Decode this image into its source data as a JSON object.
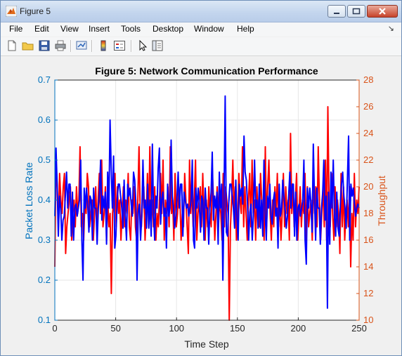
{
  "window": {
    "title": "Figure 5",
    "controls": {
      "minimize": "minimize",
      "maximize": "maximize",
      "close": "close"
    }
  },
  "menu": {
    "items": [
      "File",
      "Edit",
      "View",
      "Insert",
      "Tools",
      "Desktop",
      "Window",
      "Help"
    ],
    "dock_arrow": "↘"
  },
  "toolbar": {
    "icons": [
      "new-figure-icon",
      "open-file-icon",
      "save-icon",
      "print-icon",
      "link-plot-icon",
      "colorbar-icon",
      "legend-icon",
      "pointer-icon",
      "property-inspector-icon"
    ]
  },
  "colors": {
    "left_axis": "#0072bd",
    "right_axis": "#d95319",
    "series_left": "#0000ff",
    "series_right": "#ff0000"
  },
  "chart_data": {
    "type": "line",
    "title": "Figure 5: Network Communication Performance",
    "xlabel": "Time Step",
    "ylabel_left": "Packet Loss Rate",
    "ylabel_right": "Throughput",
    "xlim": [
      0,
      250
    ],
    "ylim_left": [
      0.1,
      0.7
    ],
    "ylim_right": [
      10,
      28
    ],
    "xticks": [
      "0",
      "50",
      "100",
      "150",
      "200",
      "250"
    ],
    "yticks_left": [
      "0.1",
      "0.2",
      "0.3",
      "0.4",
      "0.5",
      "0.6",
      "0.7"
    ],
    "yticks_right": [
      "10",
      "12",
      "14",
      "16",
      "18",
      "20",
      "22",
      "24",
      "26",
      "28"
    ],
    "grid": true,
    "series": [
      {
        "axis": "left",
        "color": "#0000ff",
        "values": [
          0.36,
          0.53,
          0.44,
          0.31,
          0.41,
          0.38,
          0.3,
          0.35,
          0.36,
          0.41,
          0.47,
          0.38,
          0.44,
          0.44,
          0.31,
          0.42,
          0.3,
          0.38,
          0.39,
          0.36,
          0.38,
          0.4,
          0.5,
          0.3,
          0.2,
          0.43,
          0.38,
          0.43,
          0.39,
          0.32,
          0.41,
          0.4,
          0.3,
          0.43,
          0.38,
          0.38,
          0.29,
          0.38,
          0.42,
          0.5,
          0.35,
          0.41,
          0.38,
          0.42,
          0.29,
          0.47,
          0.38,
          0.6,
          0.48,
          0.38,
          0.51,
          0.28,
          0.31,
          0.39,
          0.44,
          0.44,
          0.41,
          0.38,
          0.33,
          0.45,
          0.36,
          0.3,
          0.44,
          0.41,
          0.43,
          0.39,
          0.36,
          0.47,
          0.45,
          0.39,
          0.2,
          0.37,
          0.39,
          0.3,
          0.36,
          0.5,
          0.38,
          0.4,
          0.33,
          0.44,
          0.33,
          0.4,
          0.31,
          0.54,
          0.37,
          0.3,
          0.41,
          0.38,
          0.48,
          0.53,
          0.34,
          0.4,
          0.42,
          0.36,
          0.38,
          0.28,
          0.44,
          0.36,
          0.38,
          0.55,
          0.41,
          0.38,
          0.33,
          0.36,
          0.41,
          0.47,
          0.38,
          0.44,
          0.44,
          0.31,
          0.42,
          0.4,
          0.38,
          0.39,
          0.36,
          0.38,
          0.4,
          0.5,
          0.3,
          0.28,
          0.43,
          0.38,
          0.43,
          0.39,
          0.32,
          0.41,
          0.4,
          0.3,
          0.43,
          0.38,
          0.38,
          0.29,
          0.38,
          0.42,
          0.52,
          0.35,
          0.41,
          0.38,
          0.42,
          0.29,
          0.47,
          0.38,
          0.44,
          0.2,
          0.4,
          0.66,
          0.32,
          0.31,
          0.39,
          0.44,
          0.44,
          0.41,
          0.38,
          0.33,
          0.45,
          0.36,
          0.3,
          0.44,
          0.41,
          0.43,
          0.39,
          0.56,
          0.47,
          0.45,
          0.39,
          0.3,
          0.37,
          0.39,
          0.3,
          0.36,
          0.5,
          0.38,
          0.4,
          0.33,
          0.44,
          0.33,
          0.4,
          0.31,
          0.5,
          0.37,
          0.3,
          0.41,
          0.38,
          0.44,
          0.36,
          0.34,
          0.4,
          0.42,
          0.36,
          0.38,
          0.28,
          0.44,
          0.36,
          0.38,
          0.45,
          0.41,
          0.38,
          0.33,
          0.36,
          0.41,
          0.47,
          0.38,
          0.44,
          0.44,
          0.31,
          0.42,
          0.3,
          0.38,
          0.39,
          0.36,
          0.38,
          0.4,
          0.5,
          0.3,
          0.24,
          0.43,
          0.38,
          0.43,
          0.39,
          0.32,
          0.54,
          0.4,
          0.3,
          0.43,
          0.38,
          0.38,
          0.29,
          0.38,
          0.42,
          0.5,
          0.35,
          0.41,
          0.13,
          0.42,
          0.29,
          0.47,
          0.38,
          0.5,
          0.36,
          0.31,
          0.42,
          0.33,
          0.31,
          0.39,
          0.44,
          0.47,
          0.41,
          0.38,
          0.33,
          0.45,
          0.56,
          0.3,
          0.44,
          0.41,
          0.43,
          0.39,
          0.36,
          0.38,
          0.39,
          0.38
        ]
      },
      {
        "axis": "right",
        "color": "#ff0000",
        "values": [
          14,
          22,
          20,
          17,
          21,
          19,
          18,
          20,
          21,
          15,
          17,
          18,
          19,
          20,
          16,
          18,
          19,
          17,
          20,
          18,
          19,
          23,
          17,
          18,
          16,
          19,
          18,
          21,
          20,
          17,
          18,
          19,
          16,
          18,
          20,
          17,
          19,
          21,
          18,
          22,
          17,
          18,
          20,
          16,
          19,
          17,
          18,
          12,
          18,
          19,
          21,
          17,
          20,
          18,
          19,
          16,
          18,
          20,
          17,
          19,
          18,
          21,
          17,
          16,
          19,
          18,
          20,
          17,
          16,
          19,
          23,
          18,
          17,
          19,
          20,
          16,
          18,
          21,
          17,
          23,
          18,
          19,
          17,
          20,
          16,
          18,
          17,
          19,
          21,
          18,
          22,
          16,
          19,
          18,
          20,
          17,
          23,
          18,
          19,
          16,
          21,
          17,
          18,
          20,
          19,
          16,
          18,
          17,
          21,
          19,
          17,
          15,
          22,
          18,
          20,
          17,
          19,
          22,
          16,
          18,
          19,
          20,
          17,
          21,
          18,
          16,
          19,
          17,
          20,
          18,
          17,
          21,
          19,
          16,
          18,
          20,
          17,
          19,
          18,
          16,
          21,
          17,
          20,
          19,
          18,
          10,
          17,
          19,
          22,
          18,
          20,
          16,
          17,
          21,
          19,
          18,
          23,
          17,
          20,
          18,
          16,
          19,
          21,
          17,
          22,
          18,
          19,
          16,
          20,
          18,
          17,
          21,
          19,
          18,
          16,
          23,
          17,
          20,
          22,
          18,
          16,
          19,
          17,
          20,
          18,
          21,
          17,
          19,
          16,
          18,
          21,
          17,
          20,
          18,
          19,
          16,
          24,
          18,
          20,
          17,
          19,
          21,
          16,
          18,
          20,
          17,
          19,
          18,
          21,
          16,
          20,
          17,
          18,
          19,
          16,
          21,
          18,
          20,
          17,
          23,
          19,
          16,
          18,
          20,
          17,
          22,
          16,
          26,
          19,
          17,
          21,
          18,
          16,
          20,
          17,
          19,
          18,
          15,
          21,
          17,
          20,
          16,
          18,
          19,
          17,
          20,
          14,
          18,
          16,
          21,
          17,
          19,
          18,
          20
        ]
      }
    ]
  }
}
